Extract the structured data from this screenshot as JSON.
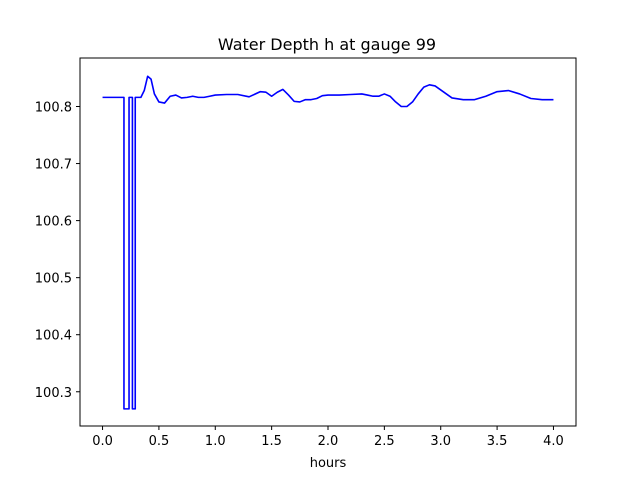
{
  "chart_data": {
    "type": "line",
    "title": "Water Depth h at gauge 99",
    "xlabel": "hours",
    "ylabel": "",
    "xlim": [
      -0.2,
      4.2
    ],
    "ylim": [
      100.24,
      100.885
    ],
    "xticks": [
      0.0,
      0.5,
      1.0,
      1.5,
      2.0,
      2.5,
      3.0,
      3.5,
      4.0
    ],
    "xtick_labels": [
      "0.0",
      "0.5",
      "1.0",
      "1.5",
      "2.0",
      "2.5",
      "3.0",
      "3.5",
      "4.0"
    ],
    "yticks": [
      100.3,
      100.4,
      100.5,
      100.6,
      100.7,
      100.8
    ],
    "ytick_labels": [
      "100.3",
      "100.4",
      "100.5",
      "100.6",
      "100.7",
      "100.8"
    ],
    "grid": false,
    "legend": "none",
    "series": [
      {
        "color": "#0000ff",
        "x": [
          0.0,
          0.18,
          0.19,
          0.19,
          0.235,
          0.235,
          0.26,
          0.265,
          0.265,
          0.28,
          0.29,
          0.29,
          0.3,
          0.31,
          0.34,
          0.37,
          0.4,
          0.43,
          0.46,
          0.5,
          0.55,
          0.6,
          0.65,
          0.7,
          0.75,
          0.8,
          0.85,
          0.9,
          0.95,
          1.0,
          1.1,
          1.2,
          1.3,
          1.4,
          1.45,
          1.5,
          1.55,
          1.6,
          1.65,
          1.7,
          1.75,
          1.8,
          1.85,
          1.9,
          1.95,
          2.0,
          2.1,
          2.2,
          2.3,
          2.35,
          2.4,
          2.45,
          2.5,
          2.55,
          2.6,
          2.65,
          2.7,
          2.75,
          2.8,
          2.85,
          2.9,
          2.95,
          3.0,
          3.05,
          3.1,
          3.2,
          3.3,
          3.4,
          3.5,
          3.6,
          3.7,
          3.8,
          3.9,
          4.0
        ],
        "y": [
          100.816,
          100.816,
          100.816,
          100.27,
          100.27,
          100.816,
          100.816,
          100.816,
          100.27,
          100.27,
          100.27,
          100.816,
          100.816,
          100.816,
          100.816,
          100.828,
          100.853,
          100.848,
          100.822,
          100.808,
          100.806,
          100.818,
          100.82,
          100.815,
          100.816,
          100.818,
          100.816,
          100.816,
          100.818,
          100.82,
          100.821,
          100.821,
          100.817,
          100.826,
          100.825,
          100.818,
          100.825,
          100.83,
          100.82,
          100.809,
          100.808,
          100.812,
          100.812,
          100.814,
          100.819,
          100.82,
          100.82,
          100.821,
          100.822,
          100.82,
          100.818,
          100.818,
          100.822,
          100.818,
          100.808,
          100.8,
          100.8,
          100.808,
          100.822,
          100.834,
          100.838,
          100.836,
          100.829,
          100.822,
          100.815,
          100.812,
          100.812,
          100.818,
          100.826,
          100.828,
          100.822,
          100.814,
          100.812,
          100.812
        ]
      }
    ]
  }
}
